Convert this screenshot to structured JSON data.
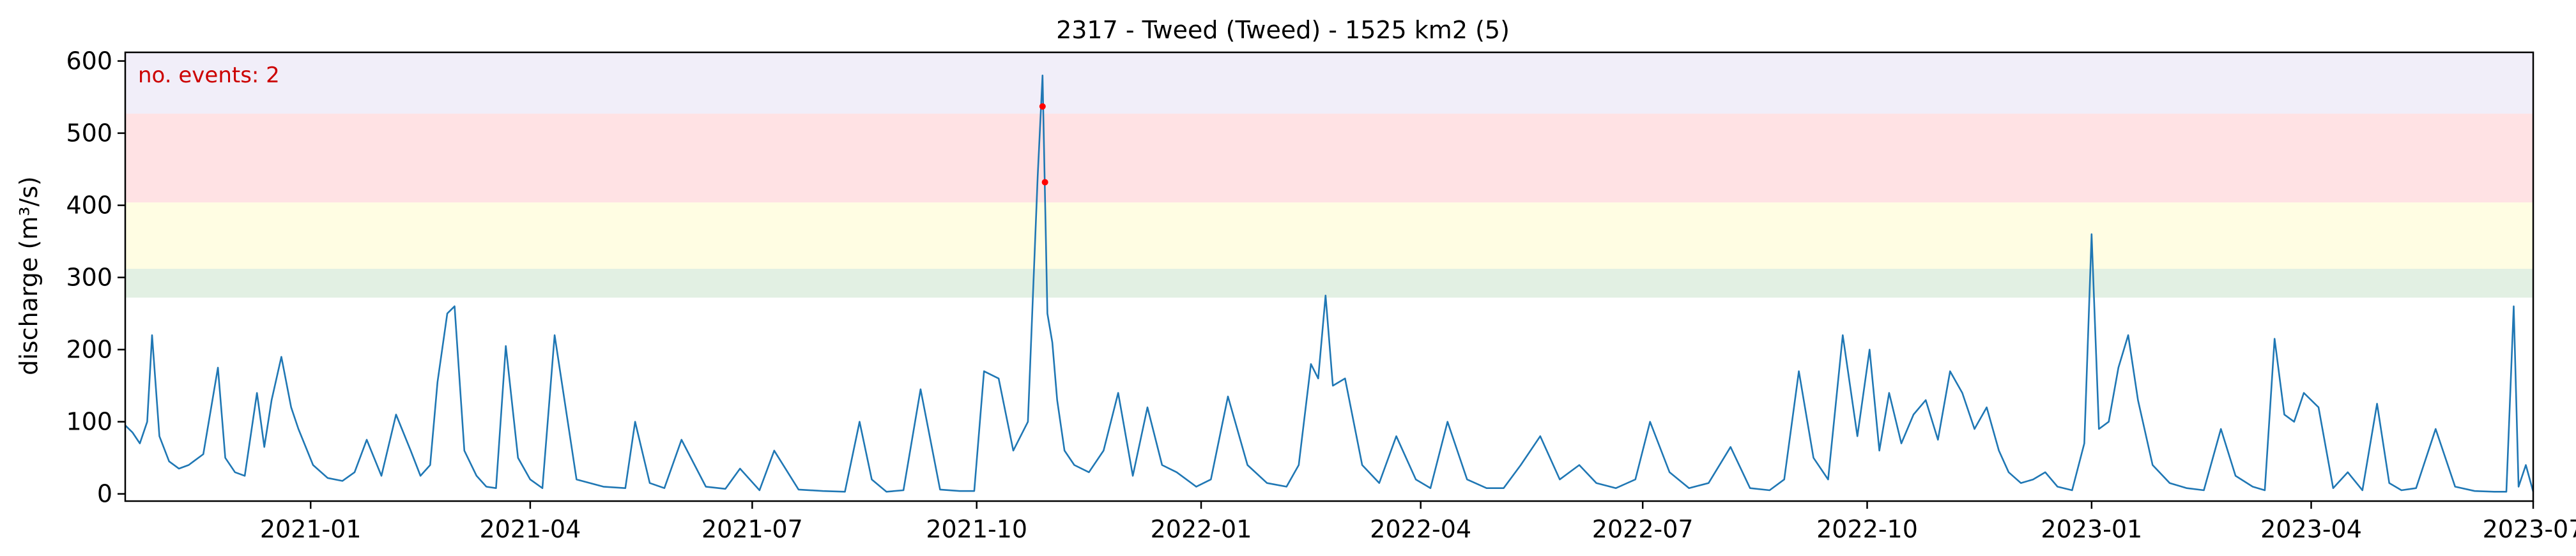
{
  "chart_data": {
    "type": "line",
    "title": "2317 - Tweed (Tweed) - 1525 km2 (5)",
    "ylabel": "discharge (m³/s)",
    "xlabel": "",
    "annotation": "no. events: 2",
    "xlim": [
      "2020-10-17",
      "2023-07-01"
    ],
    "ylim": [
      -10,
      612
    ],
    "yticks": [
      0,
      100,
      200,
      300,
      400,
      500,
      600
    ],
    "xticks": [
      "2021-01",
      "2021-04",
      "2021-07",
      "2021-10",
      "2022-01",
      "2022-04",
      "2022-07",
      "2022-10",
      "2023-01",
      "2023-04",
      "2023-07"
    ],
    "grid": false,
    "threshold_bands": [
      {
        "from": 272,
        "to": 312,
        "color": "#e2f0e3"
      },
      {
        "from": 312,
        "to": 404,
        "color": "#fffde3"
      },
      {
        "from": 404,
        "to": 527,
        "color": "#ffe2e4"
      },
      {
        "from": 527,
        "to": 612,
        "color": "#f1eef9"
      }
    ],
    "series": [
      {
        "color": "#1f77b4",
        "x": [
          "2020-10-17",
          "2020-10-20",
          "2020-10-23",
          "2020-10-26",
          "2020-10-28",
          "2020-10-31",
          "2020-11-04",
          "2020-11-08",
          "2020-11-12",
          "2020-11-14",
          "2020-11-18",
          "2020-11-24",
          "2020-11-27",
          "2020-12-01",
          "2020-12-05",
          "2020-12-10",
          "2020-12-13",
          "2020-12-16",
          "2020-12-20",
          "2020-12-24",
          "2020-12-27",
          "2021-01-02",
          "2021-01-08",
          "2021-01-14",
          "2021-01-19",
          "2021-01-24",
          "2021-01-30",
          "2021-02-05",
          "2021-02-11",
          "2021-02-15",
          "2021-02-19",
          "2021-02-22",
          "2021-02-26",
          "2021-03-01",
          "2021-03-05",
          "2021-03-10",
          "2021-03-14",
          "2021-03-18",
          "2021-03-22",
          "2021-03-27",
          "2021-04-01",
          "2021-04-06",
          "2021-04-11",
          "2021-04-20",
          "2021-05-01",
          "2021-05-10",
          "2021-05-14",
          "2021-05-20",
          "2021-05-26",
          "2021-06-02",
          "2021-06-12",
          "2021-06-20",
          "2021-06-26",
          "2021-07-04",
          "2021-07-10",
          "2021-07-20",
          "2021-07-30",
          "2021-08-08",
          "2021-08-14",
          "2021-08-19",
          "2021-08-25",
          "2021-09-01",
          "2021-09-08",
          "2021-09-16",
          "2021-09-24",
          "2021-09-30",
          "2021-10-04",
          "2021-10-10",
          "2021-10-16",
          "2021-10-22",
          "2021-10-26",
          "2021-10-28",
          "2021-10-30",
          "2021-11-01",
          "2021-11-03",
          "2021-11-06",
          "2021-11-10",
          "2021-11-16",
          "2021-11-22",
          "2021-11-28",
          "2021-12-04",
          "2021-12-10",
          "2021-12-16",
          "2021-12-22",
          "2021-12-30",
          "2022-01-05",
          "2022-01-12",
          "2022-01-20",
          "2022-01-28",
          "2022-02-05",
          "2022-02-10",
          "2022-02-15",
          "2022-02-18",
          "2022-02-21",
          "2022-02-24",
          "2022-03-01",
          "2022-03-08",
          "2022-03-15",
          "2022-03-22",
          "2022-03-30",
          "2022-04-05",
          "2022-04-12",
          "2022-04-20",
          "2022-04-28",
          "2022-05-05",
          "2022-05-12",
          "2022-05-20",
          "2022-05-28",
          "2022-06-05",
          "2022-06-12",
          "2022-06-20",
          "2022-06-28",
          "2022-07-04",
          "2022-07-12",
          "2022-07-20",
          "2022-07-28",
          "2022-08-06",
          "2022-08-14",
          "2022-08-22",
          "2022-08-28",
          "2022-09-03",
          "2022-09-09",
          "2022-09-15",
          "2022-09-21",
          "2022-09-27",
          "2022-10-02",
          "2022-10-06",
          "2022-10-10",
          "2022-10-15",
          "2022-10-20",
          "2022-10-25",
          "2022-10-30",
          "2022-11-04",
          "2022-11-09",
          "2022-11-14",
          "2022-11-19",
          "2022-11-24",
          "2022-11-28",
          "2022-12-03",
          "2022-12-08",
          "2022-12-13",
          "2022-12-18",
          "2022-12-24",
          "2022-12-29",
          "2023-01-01",
          "2023-01-04",
          "2023-01-08",
          "2023-01-12",
          "2023-01-16",
          "2023-01-20",
          "2023-01-26",
          "2023-02-02",
          "2023-02-09",
          "2023-02-16",
          "2023-02-23",
          "2023-03-01",
          "2023-03-08",
          "2023-03-13",
          "2023-03-17",
          "2023-03-21",
          "2023-03-25",
          "2023-03-29",
          "2023-04-04",
          "2023-04-10",
          "2023-04-16",
          "2023-04-22",
          "2023-04-28",
          "2023-05-03",
          "2023-05-08",
          "2023-05-14",
          "2023-05-22",
          "2023-05-30",
          "2023-06-07",
          "2023-06-15",
          "2023-06-20",
          "2023-06-23",
          "2023-06-25",
          "2023-06-28",
          "2023-07-01"
        ],
        "values": [
          95,
          85,
          70,
          100,
          220,
          80,
          45,
          35,
          40,
          45,
          55,
          175,
          50,
          30,
          25,
          140,
          65,
          130,
          190,
          120,
          90,
          40,
          22,
          18,
          30,
          75,
          25,
          110,
          60,
          25,
          40,
          155,
          250,
          260,
          60,
          25,
          10,
          8,
          205,
          50,
          20,
          8,
          220,
          20,
          10,
          8,
          100,
          15,
          8,
          75,
          10,
          7,
          35,
          5,
          60,
          6,
          4,
          3,
          100,
          20,
          3,
          5,
          145,
          6,
          4,
          4,
          170,
          160,
          60,
          100,
          440,
          580,
          250,
          210,
          130,
          60,
          40,
          30,
          60,
          140,
          25,
          120,
          40,
          30,
          10,
          20,
          135,
          40,
          15,
          10,
          40,
          180,
          160,
          275,
          150,
          160,
          40,
          15,
          80,
          20,
          8,
          100,
          20,
          8,
          8,
          40,
          80,
          20,
          40,
          15,
          8,
          20,
          100,
          30,
          8,
          15,
          65,
          8,
          5,
          20,
          170,
          50,
          20,
          220,
          80,
          200,
          60,
          140,
          70,
          110,
          130,
          75,
          170,
          140,
          90,
          120,
          60,
          30,
          15,
          20,
          30,
          10,
          5,
          70,
          360,
          90,
          100,
          175,
          220,
          130,
          40,
          15,
          8,
          5,
          90,
          25,
          10,
          5,
          215,
          110,
          100,
          140,
          120,
          8,
          30,
          5,
          125,
          15,
          5,
          8,
          90,
          10,
          4,
          3,
          3,
          260,
          10,
          40,
          3
        ]
      }
    ],
    "event_markers": [
      {
        "x": "2021-10-28",
        "y": 537,
        "color": "#ff0000"
      },
      {
        "x": "2021-10-29",
        "y": 432,
        "color": "#ff0000"
      }
    ]
  }
}
